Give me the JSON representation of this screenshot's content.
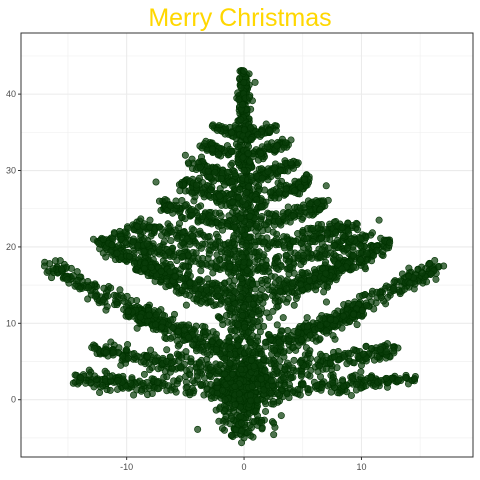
{
  "chart_data": {
    "type": "scatter",
    "title": "Merry Christmas",
    "xlabel": "",
    "ylabel": "",
    "xlim": [
      -19,
      19.5
    ],
    "ylim": [
      -7.5,
      48
    ],
    "x_ticks": [
      -10,
      0,
      10
    ],
    "x_tick_labels": [
      "-10",
      "0",
      "10"
    ],
    "y_ticks": [
      0,
      10,
      20,
      30,
      40
    ],
    "y_tick_labels": [
      "0",
      "10",
      "20",
      "30",
      "40"
    ],
    "grid": true,
    "legend": "none",
    "title_color": "#FFD700",
    "point_color": "#0a3d0a",
    "point_stroke": "#003300",
    "series": [
      {
        "name": "",
        "description": "tree-shaped cloud of points: trunk x≈0 from -5 to 43, branches fanning out at levels ~0,3,10,13,20,25,28,33",
        "sample_points": [
          [
            0,
            43
          ],
          [
            -17,
            17.5
          ],
          [
            17,
            17.5
          ],
          [
            0,
            -5
          ],
          [
            -12,
            21
          ],
          [
            11.5,
            23.5
          ],
          [
            -7.5,
            28.5
          ],
          [
            7,
            28
          ],
          [
            -5,
            32
          ],
          [
            4,
            34
          ],
          [
            -14,
            14.5
          ],
          [
            14.5,
            14.5
          ],
          [
            -10.5,
            4.5
          ],
          [
            10,
            4.5
          ],
          [
            -7,
            9.5
          ],
          [
            7,
            9
          ],
          [
            0,
            18
          ],
          [
            0,
            30
          ]
        ]
      }
    ]
  }
}
